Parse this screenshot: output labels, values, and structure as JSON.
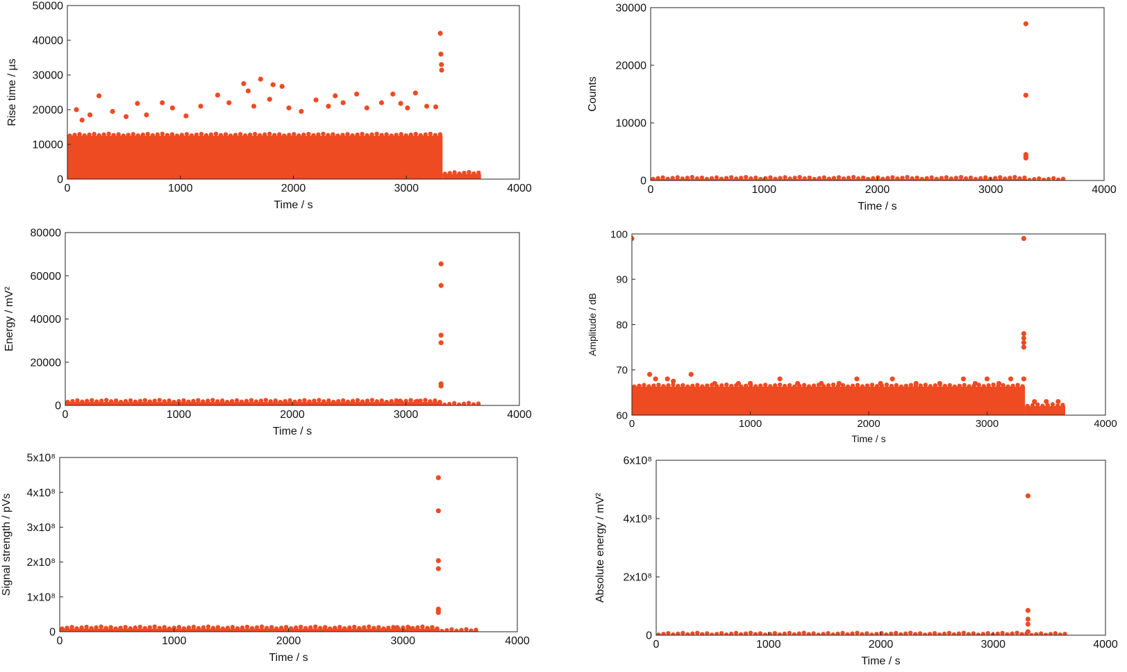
{
  "colors": {
    "marker": "#EE4B22",
    "axis": "#222222",
    "text": "#111111"
  },
  "chart_data": [
    {
      "type": "scatter",
      "title": "",
      "xlabel": "Time / s",
      "ylabel": "Rise time / µs",
      "xlim": [
        0,
        4000
      ],
      "ylim": [
        0,
        50000
      ],
      "xticks": [
        "0",
        "1000",
        "2000",
        "3000",
        "4000"
      ],
      "yticks": [
        "0",
        "10000",
        "20000",
        "30000",
        "40000",
        "50000"
      ],
      "dense_bands": [
        {
          "x": [
            0,
            3320
          ],
          "y": [
            0,
            12500
          ]
        },
        {
          "x": [
            3320,
            3660
          ],
          "y": [
            0,
            1500
          ]
        }
      ],
      "outliers": [
        [
          80,
          20000
        ],
        [
          130,
          17000
        ],
        [
          200,
          18500
        ],
        [
          280,
          24000
        ],
        [
          400,
          19500
        ],
        [
          520,
          18000
        ],
        [
          620,
          21800
        ],
        [
          700,
          18500
        ],
        [
          840,
          22000
        ],
        [
          930,
          20500
        ],
        [
          1050,
          18200
        ],
        [
          1180,
          21000
        ],
        [
          1330,
          24200
        ],
        [
          1430,
          22000
        ],
        [
          1560,
          27500
        ],
        [
          1600,
          25400
        ],
        [
          1650,
          21000
        ],
        [
          1710,
          28800
        ],
        [
          1790,
          23000
        ],
        [
          1820,
          27200
        ],
        [
          1900,
          26700
        ],
        [
          1960,
          20500
        ],
        [
          2070,
          19500
        ],
        [
          2200,
          22800
        ],
        [
          2310,
          21000
        ],
        [
          2370,
          24000
        ],
        [
          2440,
          22000
        ],
        [
          2560,
          24500
        ],
        [
          2650,
          20500
        ],
        [
          2780,
          22000
        ],
        [
          2880,
          24500
        ],
        [
          2950,
          21800
        ],
        [
          3010,
          20500
        ],
        [
          3080,
          24800
        ],
        [
          3180,
          21000
        ],
        [
          3260,
          20800
        ],
        [
          3300,
          42000
        ],
        [
          3305,
          36000
        ],
        [
          3310,
          33000
        ],
        [
          3312,
          31400
        ]
      ]
    },
    {
      "type": "scatter",
      "title": "",
      "xlabel": "Time / s",
      "ylabel": "Counts",
      "xlim": [
        0,
        4000
      ],
      "ylim": [
        0,
        30000
      ],
      "xticks": [
        "0",
        "1000",
        "2000",
        "3000",
        "4000"
      ],
      "yticks": [
        "0",
        "10000",
        "20000",
        "30000"
      ],
      "dense_bands": [
        {
          "x": [
            0,
            3320
          ],
          "y": [
            0,
            250
          ]
        },
        {
          "x": [
            3320,
            3660
          ],
          "y": [
            0,
            80
          ]
        }
      ],
      "outliers": [
        [
          3310,
          27200
        ],
        [
          3310,
          14800
        ],
        [
          3310,
          4500
        ],
        [
          3310,
          4200
        ],
        [
          3310,
          3900
        ]
      ]
    },
    {
      "type": "scatter",
      "title": "",
      "xlabel": "Time / s",
      "ylabel": "Energy / mV²",
      "xlim": [
        0,
        4000
      ],
      "ylim": [
        0,
        80000
      ],
      "xticks": [
        "0",
        "1000",
        "2000",
        "3000",
        "4000"
      ],
      "yticks": [
        "0",
        "20000",
        "40000",
        "60000",
        "80000"
      ],
      "dense_bands": [
        {
          "x": [
            0,
            3320
          ],
          "y": [
            0,
            1600
          ]
        },
        {
          "x": [
            3320,
            3660
          ],
          "y": [
            0,
            300
          ]
        }
      ],
      "outliers": [
        [
          3310,
          65500
        ],
        [
          3310,
          55500
        ],
        [
          3310,
          32500
        ],
        [
          3310,
          29000
        ],
        [
          3310,
          10000
        ],
        [
          3310,
          9000
        ],
        [
          2950,
          2000
        ],
        [
          3100,
          1900
        ]
      ]
    },
    {
      "type": "scatter",
      "title": "",
      "xlabel": "Time / s",
      "ylabel": "Amplitude / dB",
      "xlim": [
        0,
        4000
      ],
      "ylim": [
        60,
        100
      ],
      "xticks": [
        "0",
        "1000",
        "2000",
        "3000",
        "4000"
      ],
      "yticks": [
        "60",
        "70",
        "80",
        "90",
        "100"
      ],
      "dense_bands": [
        {
          "x": [
            0,
            3320
          ],
          "y": [
            60,
            66.3
          ]
        },
        {
          "x": [
            3320,
            3660
          ],
          "y": [
            60,
            62
          ]
        }
      ],
      "outliers": [
        [
          0,
          99
        ],
        [
          150,
          69
        ],
        [
          200,
          68
        ],
        [
          300,
          68
        ],
        [
          350,
          67.5
        ],
        [
          500,
          69
        ],
        [
          700,
          67
        ],
        [
          900,
          67
        ],
        [
          1000,
          67
        ],
        [
          1250,
          68
        ],
        [
          1400,
          67
        ],
        [
          1600,
          67
        ],
        [
          1750,
          67
        ],
        [
          1900,
          68
        ],
        [
          2100,
          67
        ],
        [
          2200,
          68
        ],
        [
          2400,
          67
        ],
        [
          2600,
          67
        ],
        [
          2800,
          68
        ],
        [
          2900,
          67
        ],
        [
          3000,
          68
        ],
        [
          3100,
          67
        ],
        [
          3200,
          68
        ],
        [
          3310,
          99
        ],
        [
          3310,
          78
        ],
        [
          3310,
          77
        ],
        [
          3310,
          76
        ],
        [
          3310,
          75
        ],
        [
          3310,
          68
        ],
        [
          3400,
          63
        ],
        [
          3500,
          63
        ],
        [
          3600,
          63
        ]
      ]
    },
    {
      "type": "scatter",
      "title": "",
      "xlabel": "Time / s",
      "ylabel": "Signal strength / pVs",
      "xlim": [
        0,
        4000
      ],
      "ylim": [
        0,
        500000000
      ],
      "xticks": [
        "0",
        "1000",
        "2000",
        "3000",
        "4000"
      ],
      "yticks": [
        "0",
        "1x10⁸",
        "2x10⁸",
        "3x10⁸",
        "4x10⁸",
        "5x10⁸"
      ],
      "dense_bands": [
        {
          "x": [
            0,
            3320
          ],
          "y": [
            0,
            9000000
          ]
        },
        {
          "x": [
            3320,
            3660
          ],
          "y": [
            0,
            2000000
          ]
        }
      ],
      "outliers": [
        [
          3310,
          442000000
        ],
        [
          3310,
          347000000
        ],
        [
          3310,
          204000000
        ],
        [
          3310,
          181000000
        ],
        [
          3310,
          65000000
        ],
        [
          3310,
          60000000
        ],
        [
          3310,
          55000000
        ],
        [
          2950,
          12000000
        ],
        [
          3050,
          11000000
        ]
      ]
    },
    {
      "type": "scatter",
      "title": "",
      "xlabel": "Time / s",
      "ylabel": "Absolute energy / mV²",
      "xlim": [
        0,
        4000
      ],
      "ylim": [
        0,
        600000000
      ],
      "xticks": [
        "0",
        "1000",
        "2000",
        "3000",
        "4000"
      ],
      "yticks": [
        "0",
        "2x10⁸",
        "4x10⁸",
        "6x10⁸"
      ],
      "dense_bands": [
        {
          "x": [
            0,
            3320
          ],
          "y": [
            0,
            1500000
          ]
        },
        {
          "x": [
            3320,
            3660
          ],
          "y": [
            0,
            500000
          ]
        }
      ],
      "outliers": [
        [
          3310,
          478000000
        ],
        [
          3310,
          85000000
        ],
        [
          3310,
          55000000
        ],
        [
          3310,
          38000000
        ],
        [
          3310,
          12000000
        ]
      ]
    }
  ]
}
